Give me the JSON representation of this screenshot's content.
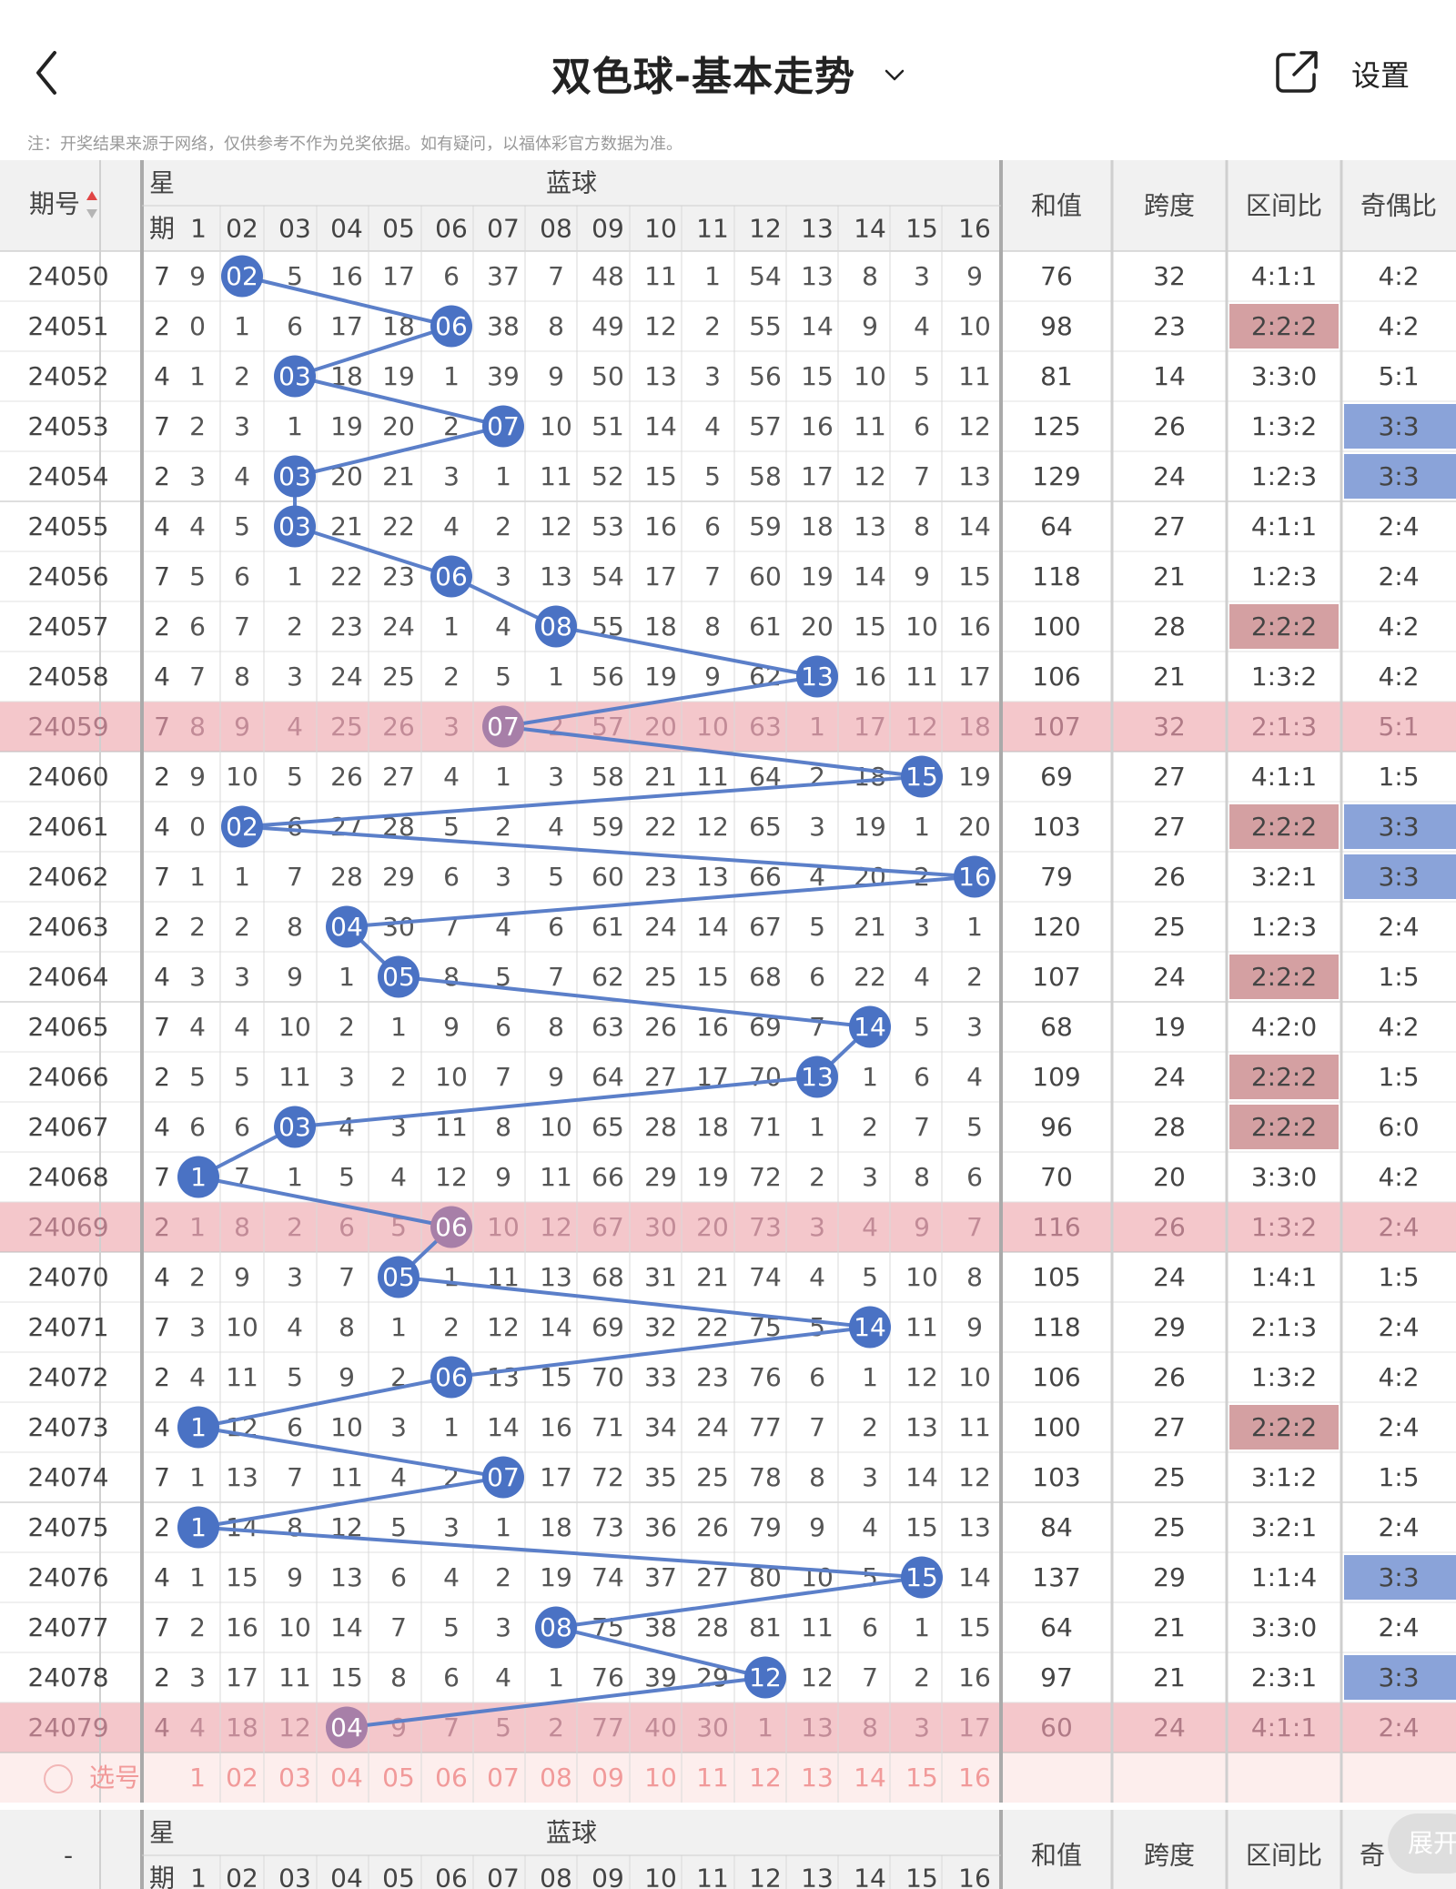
{
  "header": {
    "title": "双色球-基本走势",
    "settings_label": "设置",
    "note": "注：开奖结果来源于网络，仅供参考不作为兑奖依据。如有疑问，以福体彩官方数据为准。"
  },
  "table_header": {
    "period_label": "期号",
    "weekday_label_top": "星",
    "weekday_label_bottom": "期",
    "blue_group_label": "蓝球",
    "blue_columns": [
      "1",
      "02",
      "03",
      "04",
      "05",
      "06",
      "07",
      "08",
      "09",
      "10",
      "11",
      "12",
      "13",
      "14",
      "15",
      "16"
    ],
    "sum_label": "和值",
    "span_label": "跨度",
    "zone_ratio_label": "区间比",
    "odd_even_label": "奇偶比"
  },
  "rows": [
    {
      "period": "24050",
      "weekday": "7",
      "blue": 2,
      "cells": [
        "9",
        "02",
        "5",
        "16",
        "17",
        "6",
        "37",
        "7",
        "48",
        "11",
        "1",
        "54",
        "13",
        "8",
        "3",
        "9"
      ],
      "sum": "76",
      "span": "32",
      "zone": "4:1:1",
      "odd_even": "4:2",
      "zone_hl": false,
      "oe_hl": false,
      "row_hl": false
    },
    {
      "period": "24051",
      "weekday": "2",
      "blue": 6,
      "cells": [
        "0",
        "1",
        "6",
        "17",
        "18",
        "06",
        "38",
        "8",
        "49",
        "12",
        "2",
        "55",
        "14",
        "9",
        "4",
        "10"
      ],
      "sum": "98",
      "span": "23",
      "zone": "2:2:2",
      "odd_even": "4:2",
      "zone_hl": true,
      "oe_hl": false,
      "row_hl": false
    },
    {
      "period": "24052",
      "weekday": "4",
      "blue": 3,
      "cells": [
        "1",
        "2",
        "03",
        "18",
        "19",
        "1",
        "39",
        "9",
        "50",
        "13",
        "3",
        "56",
        "15",
        "10",
        "5",
        "11"
      ],
      "sum": "81",
      "span": "14",
      "zone": "3:3:0",
      "odd_even": "5:1",
      "zone_hl": false,
      "oe_hl": false,
      "row_hl": false
    },
    {
      "period": "24053",
      "weekday": "7",
      "blue": 7,
      "cells": [
        "2",
        "3",
        "1",
        "19",
        "20",
        "2",
        "07",
        "10",
        "51",
        "14",
        "4",
        "57",
        "16",
        "11",
        "6",
        "12"
      ],
      "sum": "125",
      "span": "26",
      "zone": "1:3:2",
      "odd_even": "3:3",
      "zone_hl": false,
      "oe_hl": true,
      "row_hl": false
    },
    {
      "period": "24054",
      "weekday": "2",
      "blue": 3,
      "cells": [
        "3",
        "4",
        "03",
        "20",
        "21",
        "3",
        "1",
        "11",
        "52",
        "15",
        "5",
        "58",
        "17",
        "12",
        "7",
        "13"
      ],
      "sum": "129",
      "span": "24",
      "zone": "1:2:3",
      "odd_even": "3:3",
      "zone_hl": false,
      "oe_hl": true,
      "row_hl": false
    },
    {
      "period": "24055",
      "weekday": "4",
      "blue": 3,
      "cells": [
        "4",
        "5",
        "03",
        "21",
        "22",
        "4",
        "2",
        "12",
        "53",
        "16",
        "6",
        "59",
        "18",
        "13",
        "8",
        "14"
      ],
      "sum": "64",
      "span": "27",
      "zone": "4:1:1",
      "odd_even": "2:4",
      "zone_hl": false,
      "oe_hl": false,
      "row_hl": false
    },
    {
      "period": "24056",
      "weekday": "7",
      "blue": 6,
      "cells": [
        "5",
        "6",
        "1",
        "22",
        "23",
        "06",
        "3",
        "13",
        "54",
        "17",
        "7",
        "60",
        "19",
        "14",
        "9",
        "15"
      ],
      "sum": "118",
      "span": "21",
      "zone": "1:2:3",
      "odd_even": "2:4",
      "zone_hl": false,
      "oe_hl": false,
      "row_hl": false
    },
    {
      "period": "24057",
      "weekday": "2",
      "blue": 8,
      "cells": [
        "6",
        "7",
        "2",
        "23",
        "24",
        "1",
        "4",
        "08",
        "55",
        "18",
        "8",
        "61",
        "20",
        "15",
        "10",
        "16"
      ],
      "sum": "100",
      "span": "28",
      "zone": "2:2:2",
      "odd_even": "4:2",
      "zone_hl": true,
      "oe_hl": false,
      "row_hl": false
    },
    {
      "period": "24058",
      "weekday": "4",
      "blue": 13,
      "cells": [
        "7",
        "8",
        "3",
        "24",
        "25",
        "2",
        "5",
        "1",
        "56",
        "19",
        "9",
        "62",
        "13",
        "16",
        "11",
        "17"
      ],
      "sum": "106",
      "span": "21",
      "zone": "1:3:2",
      "odd_even": "4:2",
      "zone_hl": false,
      "oe_hl": false,
      "row_hl": false
    },
    {
      "period": "24059",
      "weekday": "7",
      "blue": 7,
      "cells": [
        "8",
        "9",
        "4",
        "25",
        "26",
        "3",
        "07",
        "2",
        "57",
        "20",
        "10",
        "63",
        "1",
        "17",
        "12",
        "18"
      ],
      "sum": "107",
      "span": "32",
      "zone": "2:1:3",
      "odd_even": "5:1",
      "zone_hl": false,
      "oe_hl": false,
      "row_hl": true
    },
    {
      "period": "24060",
      "weekday": "2",
      "blue": 15,
      "cells": [
        "9",
        "10",
        "5",
        "26",
        "27",
        "4",
        "1",
        "3",
        "58",
        "21",
        "11",
        "64",
        "2",
        "18",
        "15",
        "19"
      ],
      "sum": "69",
      "span": "27",
      "zone": "4:1:1",
      "odd_even": "1:5",
      "zone_hl": false,
      "oe_hl": false,
      "row_hl": false
    },
    {
      "period": "24061",
      "weekday": "4",
      "blue": 2,
      "cells": [
        "0",
        "02",
        "6",
        "27",
        "28",
        "5",
        "2",
        "4",
        "59",
        "22",
        "12",
        "65",
        "3",
        "19",
        "1",
        "20"
      ],
      "sum": "103",
      "span": "27",
      "zone": "2:2:2",
      "odd_even": "3:3",
      "zone_hl": true,
      "oe_hl": true,
      "row_hl": false
    },
    {
      "period": "24062",
      "weekday": "7",
      "blue": 16,
      "cells": [
        "1",
        "1",
        "7",
        "28",
        "29",
        "6",
        "3",
        "5",
        "60",
        "23",
        "13",
        "66",
        "4",
        "20",
        "2",
        "16"
      ],
      "sum": "79",
      "span": "26",
      "zone": "3:2:1",
      "odd_even": "3:3",
      "zone_hl": false,
      "oe_hl": true,
      "row_hl": false
    },
    {
      "period": "24063",
      "weekday": "2",
      "blue": 4,
      "cells": [
        "2",
        "2",
        "8",
        "04",
        "30",
        "7",
        "4",
        "6",
        "61",
        "24",
        "14",
        "67",
        "5",
        "21",
        "3",
        "1"
      ],
      "sum": "120",
      "span": "25",
      "zone": "1:2:3",
      "odd_even": "2:4",
      "zone_hl": false,
      "oe_hl": false,
      "row_hl": false
    },
    {
      "period": "24064",
      "weekday": "4",
      "blue": 5,
      "cells": [
        "3",
        "3",
        "9",
        "1",
        "05",
        "8",
        "5",
        "7",
        "62",
        "25",
        "15",
        "68",
        "6",
        "22",
        "4",
        "2"
      ],
      "sum": "107",
      "span": "24",
      "zone": "2:2:2",
      "odd_even": "1:5",
      "zone_hl": true,
      "oe_hl": false,
      "row_hl": false
    },
    {
      "period": "24065",
      "weekday": "7",
      "blue": 14,
      "cells": [
        "4",
        "4",
        "10",
        "2",
        "1",
        "9",
        "6",
        "8",
        "63",
        "26",
        "16",
        "69",
        "7",
        "14",
        "5",
        "3"
      ],
      "sum": "68",
      "span": "19",
      "zone": "4:2:0",
      "odd_even": "4:2",
      "zone_hl": false,
      "oe_hl": false,
      "row_hl": false
    },
    {
      "period": "24066",
      "weekday": "2",
      "blue": 13,
      "cells": [
        "5",
        "5",
        "11",
        "3",
        "2",
        "10",
        "7",
        "9",
        "64",
        "27",
        "17",
        "70",
        "13",
        "1",
        "6",
        "4"
      ],
      "sum": "109",
      "span": "24",
      "zone": "2:2:2",
      "odd_even": "1:5",
      "zone_hl": true,
      "oe_hl": false,
      "row_hl": false
    },
    {
      "period": "24067",
      "weekday": "4",
      "blue": 3,
      "cells": [
        "6",
        "6",
        "03",
        "4",
        "3",
        "11",
        "8",
        "10",
        "65",
        "28",
        "18",
        "71",
        "1",
        "2",
        "7",
        "5"
      ],
      "sum": "96",
      "span": "28",
      "zone": "2:2:2",
      "odd_even": "6:0",
      "zone_hl": true,
      "oe_hl": false,
      "row_hl": false
    },
    {
      "period": "24068",
      "weekday": "7",
      "blue": 1,
      "cells": [
        "1",
        "7",
        "1",
        "5",
        "4",
        "12",
        "9",
        "11",
        "66",
        "29",
        "19",
        "72",
        "2",
        "3",
        "8",
        "6"
      ],
      "sum": "70",
      "span": "20",
      "zone": "3:3:0",
      "odd_even": "4:2",
      "zone_hl": false,
      "oe_hl": false,
      "row_hl": false
    },
    {
      "period": "24069",
      "weekday": "2",
      "blue": 6,
      "cells": [
        "1",
        "8",
        "2",
        "6",
        "5",
        "06",
        "10",
        "12",
        "67",
        "30",
        "20",
        "73",
        "3",
        "4",
        "9",
        "7"
      ],
      "sum": "116",
      "span": "26",
      "zone": "1:3:2",
      "odd_even": "2:4",
      "zone_hl": false,
      "oe_hl": false,
      "row_hl": true
    },
    {
      "period": "24070",
      "weekday": "4",
      "blue": 5,
      "cells": [
        "2",
        "9",
        "3",
        "7",
        "05",
        "1",
        "11",
        "13",
        "68",
        "31",
        "21",
        "74",
        "4",
        "5",
        "10",
        "8"
      ],
      "sum": "105",
      "span": "24",
      "zone": "1:4:1",
      "odd_even": "1:5",
      "zone_hl": false,
      "oe_hl": false,
      "row_hl": false
    },
    {
      "period": "24071",
      "weekday": "7",
      "blue": 14,
      "cells": [
        "3",
        "10",
        "4",
        "8",
        "1",
        "2",
        "12",
        "14",
        "69",
        "32",
        "22",
        "75",
        "5",
        "14",
        "11",
        "9"
      ],
      "sum": "118",
      "span": "29",
      "zone": "2:1:3",
      "odd_even": "2:4",
      "zone_hl": false,
      "oe_hl": false,
      "row_hl": false
    },
    {
      "period": "24072",
      "weekday": "2",
      "blue": 6,
      "cells": [
        "4",
        "11",
        "5",
        "9",
        "2",
        "06",
        "13",
        "15",
        "70",
        "33",
        "23",
        "76",
        "6",
        "1",
        "12",
        "10"
      ],
      "sum": "106",
      "span": "26",
      "zone": "1:3:2",
      "odd_even": "4:2",
      "zone_hl": false,
      "oe_hl": false,
      "row_hl": false
    },
    {
      "period": "24073",
      "weekday": "4",
      "blue": 1,
      "cells": [
        "1",
        "12",
        "6",
        "10",
        "3",
        "1",
        "14",
        "16",
        "71",
        "34",
        "24",
        "77",
        "7",
        "2",
        "13",
        "11"
      ],
      "sum": "100",
      "span": "27",
      "zone": "2:2:2",
      "odd_even": "2:4",
      "zone_hl": true,
      "oe_hl": false,
      "row_hl": false
    },
    {
      "period": "24074",
      "weekday": "7",
      "blue": 7,
      "cells": [
        "1",
        "13",
        "7",
        "11",
        "4",
        "2",
        "07",
        "17",
        "72",
        "35",
        "25",
        "78",
        "8",
        "3",
        "14",
        "12"
      ],
      "sum": "103",
      "span": "25",
      "zone": "3:1:2",
      "odd_even": "1:5",
      "zone_hl": false,
      "oe_hl": false,
      "row_hl": false
    },
    {
      "period": "24075",
      "weekday": "2",
      "blue": 1,
      "cells": [
        "1",
        "14",
        "8",
        "12",
        "5",
        "3",
        "1",
        "18",
        "73",
        "36",
        "26",
        "79",
        "9",
        "4",
        "15",
        "13"
      ],
      "sum": "84",
      "span": "25",
      "zone": "3:2:1",
      "odd_even": "2:4",
      "zone_hl": false,
      "oe_hl": false,
      "row_hl": false
    },
    {
      "period": "24076",
      "weekday": "4",
      "blue": 15,
      "cells": [
        "1",
        "15",
        "9",
        "13",
        "6",
        "4",
        "2",
        "19",
        "74",
        "37",
        "27",
        "80",
        "10",
        "5",
        "15",
        "14"
      ],
      "sum": "137",
      "span": "29",
      "zone": "1:1:4",
      "odd_even": "3:3",
      "zone_hl": false,
      "oe_hl": true,
      "row_hl": false
    },
    {
      "period": "24077",
      "weekday": "7",
      "blue": 8,
      "cells": [
        "2",
        "16",
        "10",
        "14",
        "7",
        "5",
        "3",
        "08",
        "75",
        "38",
        "28",
        "81",
        "11",
        "6",
        "1",
        "15"
      ],
      "sum": "64",
      "span": "21",
      "zone": "3:3:0",
      "odd_even": "2:4",
      "zone_hl": false,
      "oe_hl": false,
      "row_hl": false
    },
    {
      "period": "24078",
      "weekday": "2",
      "blue": 12,
      "cells": [
        "3",
        "17",
        "11",
        "15",
        "8",
        "6",
        "4",
        "1",
        "76",
        "39",
        "29",
        "12",
        "12",
        "7",
        "2",
        "16"
      ],
      "sum": "97",
      "span": "21",
      "zone": "2:3:1",
      "odd_even": "3:3",
      "zone_hl": false,
      "oe_hl": true,
      "row_hl": false
    },
    {
      "period": "24079",
      "weekday": "4",
      "blue": 4,
      "cells": [
        "4",
        "18",
        "12",
        "04",
        "9",
        "7",
        "5",
        "2",
        "77",
        "40",
        "30",
        "1",
        "13",
        "8",
        "3",
        "17"
      ],
      "sum": "60",
      "span": "24",
      "zone": "4:1:1",
      "odd_even": "2:4",
      "zone_hl": false,
      "oe_hl": false,
      "row_hl": true
    }
  ],
  "selection_row": {
    "label": "选号",
    "numbers": [
      "1",
      "02",
      "03",
      "04",
      "05",
      "06",
      "07",
      "08",
      "09",
      "10",
      "11",
      "12",
      "13",
      "14",
      "15",
      "16"
    ]
  },
  "footer_header": {
    "period_label": "-",
    "odd_even_label": "奇",
    "expand_label": "展开"
  },
  "colors": {
    "accent_blue": "#5b7fc9",
    "ball_blue": "#4a72c4",
    "row_highlight": "#f4c7cb",
    "ball_on_highlight": "#a77fa8",
    "zone_highlight": "#d4a0a2",
    "odd_even_highlight": "#8aa3d9",
    "selection_row_bg": "#fdeeed",
    "selection_text": "#f19a9a",
    "header_bg": "#f1f1f1"
  },
  "icons": {
    "back": "chevron-left-icon",
    "title_dropdown": "chevron-down-icon",
    "share": "share-external-icon",
    "select_circle": "radio-circle-icon"
  }
}
